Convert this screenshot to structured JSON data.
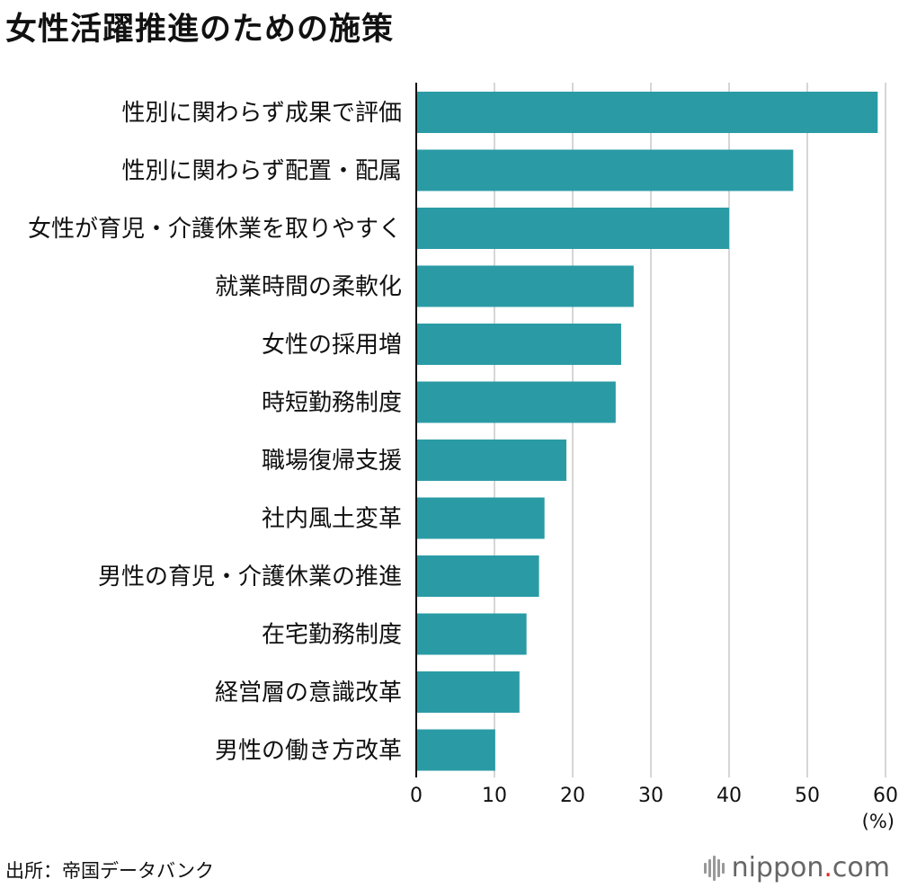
{
  "chart_data": {
    "type": "bar",
    "orientation": "horizontal",
    "title": "女性活躍推進のための施策",
    "categories": [
      "性別に関わらず成果で評価",
      "性別に関わらず配置・配属",
      "女性が育児・介護休業を取りやすく",
      "就業時間の柔軟化",
      "女性の採用増",
      "時短勤務制度",
      "職場復帰支援",
      "社内風土変革",
      "男性の育児・介護休業の推進",
      "在宅勤務制度",
      "経営層の意識改革",
      "男性の働き方改革"
    ],
    "values": [
      59.0,
      48.2,
      40.0,
      27.8,
      26.2,
      25.5,
      19.2,
      16.4,
      15.7,
      14.1,
      13.2,
      10.1
    ],
    "xticks": [
      "0",
      "10",
      "20",
      "30",
      "40",
      "50",
      "60"
    ],
    "xlim": [
      0,
      60
    ],
    "unit_label": "(%)",
    "grid": true,
    "bar_color": "#2a9ba5"
  },
  "footer": {
    "source": "出所：帝国データバンク",
    "logo_main": "nippon",
    "logo_dot": ".",
    "logo_tld": "com"
  }
}
